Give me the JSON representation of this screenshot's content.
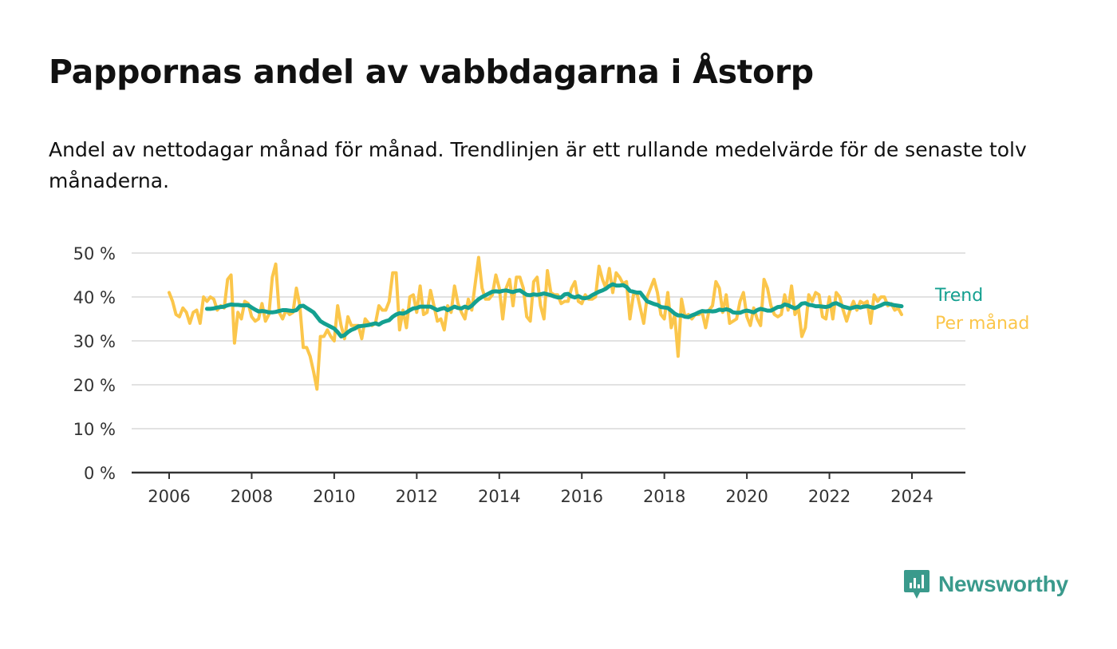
{
  "title": "Pappornas andel av vabbdagarna i Åstorp",
  "subtitle": "Andel av nettodagar månad för månad. Trendlinjen är ett rullande medelvärde för de senaste tolv månaderna.",
  "brand": {
    "name": "Newsworthy",
    "color": "#3a9a8c"
  },
  "chart_data": {
    "type": "line",
    "ylim": [
      0,
      50
    ],
    "xlim": [
      2006,
      2024.5
    ],
    "y_ticks": [
      "0 %",
      "10 %",
      "20 %",
      "30 %",
      "40 %",
      "50 %"
    ],
    "y_tick_values": [
      0,
      10,
      20,
      30,
      40,
      50
    ],
    "x_ticks": [
      "2006",
      "2008",
      "2010",
      "2012",
      "2014",
      "2016",
      "2018",
      "2020",
      "2022",
      "2024"
    ],
    "x_tick_values": [
      2006,
      2008,
      2010,
      2012,
      2014,
      2016,
      2018,
      2020,
      2022,
      2024
    ],
    "grid": true,
    "series": [
      {
        "name": "Per månad",
        "color": "#fbc64b",
        "x_start": 2006.0,
        "x_step": 0.08333,
        "values": [
          41,
          39,
          36,
          35.5,
          37.5,
          36.5,
          34,
          36.5,
          37,
          34,
          40,
          39,
          40,
          39.5,
          37,
          38,
          37.5,
          44,
          45,
          29.5,
          36.5,
          35,
          39,
          38.5,
          35.5,
          34.5,
          35,
          38.5,
          34.5,
          36,
          44.5,
          47.5,
          36.5,
          35,
          37,
          36,
          36.5,
          42,
          38,
          28.5,
          28.5,
          26.5,
          23,
          19,
          31,
          31,
          32.5,
          31,
          30,
          38,
          33.5,
          30.5,
          35.5,
          33.5,
          33.5,
          33.5,
          30.5,
          35,
          34,
          33.5,
          34,
          38,
          37,
          37,
          39,
          45.5,
          45.5,
          32.5,
          37,
          33,
          40,
          40.5,
          36.5,
          42.5,
          36,
          36.5,
          41.5,
          38,
          34.5,
          35,
          32.5,
          38,
          36.5,
          42.5,
          38.5,
          36.5,
          35,
          39.5,
          37,
          43,
          49,
          42,
          39.5,
          39.5,
          40.5,
          45,
          42,
          35,
          42,
          44,
          38,
          44.5,
          44.5,
          42,
          35.5,
          34.5,
          43.5,
          44.5,
          38,
          35,
          46,
          41,
          40.5,
          40.5,
          38.5,
          39,
          39,
          42,
          43.5,
          39,
          38.5,
          40.5,
          39.5,
          39.5,
          40,
          47,
          44,
          42,
          46.5,
          41,
          45.5,
          44.5,
          43,
          43.5,
          35,
          40.5,
          41,
          37.5,
          34,
          40,
          42,
          44,
          41,
          36,
          35,
          41,
          33,
          36,
          26.5,
          39.5,
          35.5,
          36,
          35,
          36,
          36,
          36.5,
          33,
          37,
          38,
          43.5,
          42,
          36.5,
          40.5,
          34,
          34.5,
          35,
          39,
          41,
          35.5,
          33.5,
          37.5,
          35,
          33.5,
          44,
          42,
          38,
          36,
          35.5,
          36,
          40.5,
          37,
          42.5,
          36,
          37.5,
          31,
          33,
          40.5,
          39,
          41,
          40.5,
          35.5,
          35,
          40,
          35,
          41,
          40,
          37,
          34.5,
          37,
          39,
          37,
          39,
          38.5,
          39,
          34,
          40.5,
          39,
          40,
          40,
          38,
          38.5,
          37,
          37.5,
          36
        ]
      },
      {
        "name": "Trend",
        "color": "#14a090",
        "x_start": 2006.9167,
        "x_step": 0.08333,
        "values": [
          37.3,
          37.3,
          37.4,
          37.6,
          37.7,
          37.8,
          38.1,
          38.3,
          38.2,
          38.2,
          38.1,
          38.1,
          38.1,
          37.6,
          37.1,
          36.7,
          36.8,
          36.7,
          36.5,
          36.5,
          36.6,
          36.8,
          37.0,
          37.0,
          36.9,
          36.8,
          37.0,
          37.9,
          38.0,
          37.5,
          37.0,
          36.5,
          35.5,
          34.5,
          34.0,
          33.6,
          33.2,
          32.8,
          32.0,
          31.0,
          31.3,
          32.0,
          32.5,
          32.8,
          33.3,
          33.4,
          33.5,
          33.6,
          33.8,
          34.0,
          33.7,
          34.2,
          34.5,
          34.7,
          35.5,
          36.0,
          36.3,
          36.2,
          36.5,
          37.0,
          37.4,
          37.5,
          37.8,
          37.8,
          37.8,
          37.8,
          37.4,
          37.0,
          37.3,
          37.5,
          37.0,
          37.4,
          37.8,
          37.5,
          37.4,
          37.8,
          37.5,
          38.0,
          38.8,
          39.5,
          40.0,
          40.4,
          40.8,
          41.2,
          41.3,
          41.2,
          41.4,
          41.5,
          41.3,
          41.1,
          41.4,
          41.5,
          41.0,
          40.5,
          40.4,
          40.6,
          40.5,
          40.6,
          40.8,
          40.6,
          40.4,
          40.1,
          39.9,
          39.9,
          40.6,
          40.7,
          40.1,
          39.9,
          40.2,
          39.8,
          39.7,
          39.9,
          40.4,
          40.8,
          41.2,
          41.5,
          41.9,
          42.5,
          42.9,
          42.6,
          42.6,
          42.7,
          42.3,
          41.4,
          41.2,
          41.0,
          41.0,
          40.0,
          39.0,
          38.7,
          38.4,
          38.2,
          37.7,
          37.6,
          37.5,
          36.9,
          36.2,
          35.8,
          35.8,
          35.5,
          35.4,
          35.8,
          36.1,
          36.5,
          36.8,
          36.7,
          36.8,
          36.7,
          36.8,
          37.1,
          37.0,
          37.2,
          37.0,
          36.5,
          36.4,
          36.4,
          36.7,
          36.9,
          36.7,
          36.5,
          37.0,
          37.3,
          37.1,
          36.9,
          36.9,
          37.3,
          37.7,
          37.8,
          38.3,
          38.1,
          37.7,
          37.4,
          37.8,
          38.5,
          38.6,
          38.2,
          38.1,
          37.9,
          37.9,
          37.8,
          37.7,
          37.9,
          38.4,
          38.6,
          38.2,
          37.8,
          37.6,
          37.4,
          37.6,
          37.8,
          37.6,
          37.8,
          37.9,
          37.7,
          37.5,
          37.8,
          38.1,
          38.5,
          38.5,
          38.3,
          38.1,
          38.0,
          37.9
        ]
      }
    ]
  }
}
